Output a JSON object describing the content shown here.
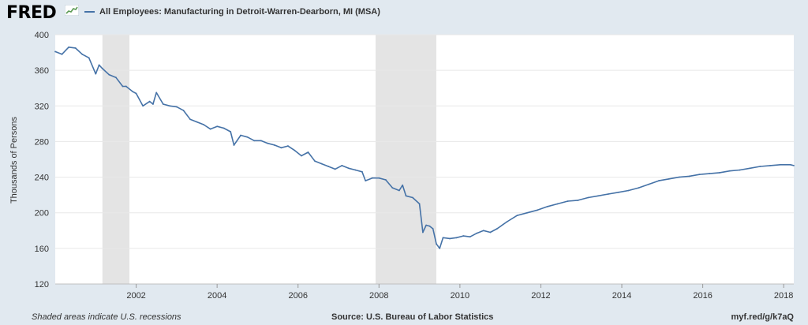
{
  "header": {
    "logo_text": "FRED",
    "logo_icon": "sparkline-chart-icon",
    "series_title": "All Employees: Manufacturing in Detroit-Warren-Dearborn, MI (MSA)"
  },
  "footer": {
    "note": "Shaded areas indicate U.S. recessions",
    "source": "Source: U.S. Bureau of Labor Statistics",
    "link": "myf.red/g/k7aQ"
  },
  "colors": {
    "background": "#e1e9f0",
    "plot_background": "#ffffff",
    "line": "#4572a7",
    "recession": "#e4e4e4",
    "grid": "#e8e8e8"
  },
  "chart_data": {
    "type": "line",
    "title": "All Employees: Manufacturing in Detroit-Warren-Dearborn, MI (MSA)",
    "xlabel": "",
    "ylabel": "Thousands of Persons",
    "x_ticks": [
      "2002",
      "2004",
      "2006",
      "2008",
      "2010",
      "2012",
      "2014",
      "2016",
      "2018"
    ],
    "y_ticks": [
      120,
      160,
      200,
      240,
      280,
      320,
      360,
      400
    ],
    "xlim": [
      "2000-01",
      "2018-04"
    ],
    "ylim": [
      120,
      400
    ],
    "grid": "horizontal",
    "recessions": [
      [
        "2001-03",
        "2001-11"
      ],
      [
        "2007-12",
        "2009-06"
      ]
    ],
    "series": [
      {
        "name": "All Employees: Manufacturing in Detroit-Warren-Dearborn, MI (MSA)",
        "x": [
          "2000-01",
          "2000-03",
          "2000-05",
          "2000-07",
          "2000-09",
          "2000-11",
          "2001-01",
          "2001-02",
          "2001-03",
          "2001-05",
          "2001-07",
          "2001-09",
          "2001-10",
          "2001-12",
          "2002-01",
          "2002-03",
          "2002-05",
          "2002-06",
          "2002-07",
          "2002-09",
          "2002-11",
          "2003-01",
          "2003-03",
          "2003-05",
          "2003-07",
          "2003-09",
          "2003-11",
          "2004-01",
          "2004-03",
          "2004-05",
          "2004-06",
          "2004-08",
          "2004-10",
          "2004-12",
          "2005-02",
          "2005-04",
          "2005-06",
          "2005-08",
          "2005-10",
          "2005-12",
          "2006-02",
          "2006-04",
          "2006-06",
          "2006-08",
          "2006-10",
          "2006-12",
          "2007-02",
          "2007-04",
          "2007-06",
          "2007-08",
          "2007-09",
          "2007-11",
          "2008-01",
          "2008-03",
          "2008-05",
          "2008-07",
          "2008-08",
          "2008-09",
          "2008-11",
          "2009-01",
          "2009-02",
          "2009-03",
          "2009-04",
          "2009-05",
          "2009-06",
          "2009-07",
          "2009-08",
          "2009-10",
          "2009-12",
          "2010-02",
          "2010-04",
          "2010-06",
          "2010-08",
          "2010-10",
          "2010-12",
          "2011-03",
          "2011-06",
          "2011-09",
          "2011-12",
          "2012-03",
          "2012-06",
          "2012-09",
          "2012-12",
          "2013-03",
          "2013-06",
          "2013-09",
          "2013-12",
          "2014-03",
          "2014-06",
          "2014-09",
          "2014-12",
          "2015-03",
          "2015-06",
          "2015-09",
          "2015-12",
          "2016-03",
          "2016-06",
          "2016-09",
          "2016-12",
          "2017-03",
          "2017-06",
          "2017-09",
          "2017-12",
          "2018-03",
          "2018-04"
        ],
        "values": [
          381,
          378,
          386,
          385,
          378,
          374,
          356,
          366,
          362,
          355,
          352,
          342,
          342,
          336,
          334,
          320,
          325,
          322,
          335,
          322,
          320,
          319,
          315,
          305,
          302,
          299,
          294,
          297,
          295,
          291,
          276,
          287,
          285,
          281,
          281,
          278,
          276,
          273,
          275,
          270,
          264,
          268,
          258,
          255,
          252,
          249,
          253,
          250,
          248,
          246,
          236,
          239,
          239,
          237,
          228,
          225,
          231,
          219,
          217,
          210,
          178,
          186,
          185,
          182,
          165,
          160,
          172,
          171,
          172,
          174,
          173,
          177,
          180,
          178,
          182,
          190,
          197,
          200,
          203,
          207,
          210,
          213,
          214,
          217,
          219,
          221,
          223,
          225,
          228,
          232,
          236,
          238,
          240,
          241,
          243,
          244,
          245,
          247,
          248,
          250,
          252,
          253,
          254,
          254,
          253
        ]
      }
    ]
  }
}
